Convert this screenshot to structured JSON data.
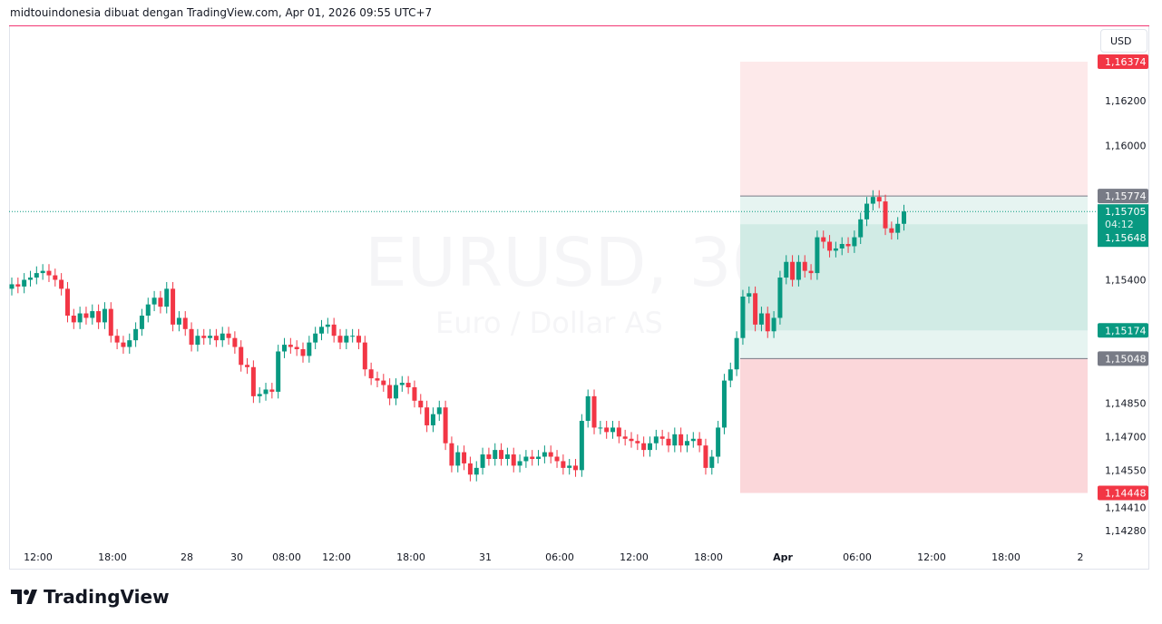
{
  "header": {
    "text": "midtouindonesia dibuat dengan TradingView.com, Apr 01, 2026 09:55 UTC+7"
  },
  "currency_button": "USD",
  "watermark": {
    "symbol": "EURUSD, 30",
    "description": "Euro / Dollar AS"
  },
  "footer": {
    "logo_text": "TradingView"
  },
  "colors": {
    "up": "#089981",
    "down": "#f23645",
    "accent_line": "#f23673",
    "label_grey": "#787b86"
  },
  "chart_data": {
    "type": "candlestick",
    "symbol": "EURUSD",
    "interval": "30",
    "ylim": [
      1.1422,
      1.165
    ],
    "y_ticks": [
      "1,16200",
      "1,16000",
      "1,15400",
      "1,14850",
      "1,14700",
      "1,14550",
      "1,14410",
      "1,14280"
    ],
    "y_tick_values": [
      1.162,
      1.16,
      1.154,
      1.1485,
      1.147,
      1.1455,
      1.1441,
      1.1428
    ],
    "x_ticks": [
      "12:00",
      "18:00",
      "28",
      "30",
      "08:00",
      "12:00",
      "18:00",
      "31",
      "06:00",
      "12:00",
      "18:00",
      "Apr",
      "06:00",
      "12:00",
      "18:00",
      "2"
    ],
    "closes": [
      1.1538,
      1.1537,
      1.154,
      1.1541,
      1.1543,
      1.1544,
      1.1542,
      1.154,
      1.1536,
      1.1524,
      1.1521,
      1.1525,
      1.1523,
      1.1526,
      1.1521,
      1.1527,
      1.1515,
      1.1512,
      1.151,
      1.1513,
      1.1518,
      1.1524,
      1.1529,
      1.1532,
      1.1528,
      1.1536,
      1.152,
      1.1523,
      1.1518,
      1.1511,
      1.1515,
      1.1514,
      1.1515,
      1.1513,
      1.1516,
      1.1514,
      1.151,
      1.1502,
      1.1501,
      1.1488,
      1.1489,
      1.1491,
      1.149,
      1.1508,
      1.1511,
      1.151,
      1.1509,
      1.1506,
      1.1512,
      1.1516,
      1.1519,
      1.152,
      1.1515,
      1.1512,
      1.1515,
      1.1515,
      1.1512,
      1.15,
      1.1496,
      1.1495,
      1.1493,
      1.1487,
      1.1493,
      1.1494,
      1.1492,
      1.1486,
      1.1483,
      1.1475,
      1.148,
      1.1483,
      1.1467,
      1.1457,
      1.1463,
      1.1458,
      1.1453,
      1.1456,
      1.1462,
      1.146,
      1.1464,
      1.146,
      1.1462,
      1.1457,
      1.1459,
      1.1461,
      1.146,
      1.1461,
      1.1463,
      1.1461,
      1.1459,
      1.1456,
      1.1457,
      1.1455,
      1.1477,
      1.1488,
      1.1474,
      1.1474,
      1.1472,
      1.1474,
      1.147,
      1.1469,
      1.1468,
      1.1467,
      1.1464,
      1.1467,
      1.147,
      1.1469,
      1.1466,
      1.1471,
      1.1466,
      1.1468,
      1.1469,
      1.1466,
      1.1456,
      1.1461,
      1.1474,
      1.1495,
      1.15,
      1.1514,
      1.15325,
      1.1534,
      1.152,
      1.1525,
      1.1517,
      1.1523,
      1.1541,
      1.1548,
      1.154,
      1.1548,
      1.1544,
      1.1543,
      1.1559,
      1.1557,
      1.1553,
      1.1554,
      1.1556,
      1.1555,
      1.1559,
      1.1567,
      1.1574,
      1.1577,
      1.1575,
      1.1563,
      1.1561,
      1.1565,
      1.15705
    ],
    "current_price": {
      "value": 1.15705,
      "label": "1,15705",
      "countdown": "04:12"
    },
    "long_position": {
      "entry": 1.15048,
      "entry_label": "1,15048",
      "target": 1.16374,
      "target_label": "1,16374",
      "stop": 1.14448,
      "stop_label": "1,14448",
      "high_marker": 1.15774,
      "high_marker_label": "1,15774",
      "level_a": 1.15648,
      "level_a_label": "1,15648",
      "level_b": 1.15174,
      "level_b_label": "1,15174"
    }
  }
}
